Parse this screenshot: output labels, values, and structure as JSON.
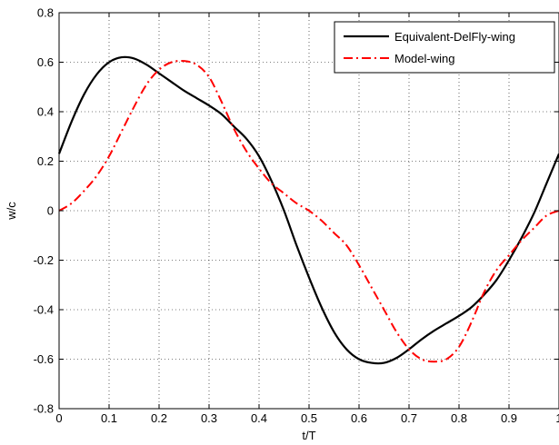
{
  "chart_data": {
    "type": "line",
    "title": "",
    "xlabel": "t/T",
    "ylabel": "w/c",
    "xlim": [
      0,
      1
    ],
    "ylim": [
      -0.8,
      0.8
    ],
    "xticks": [
      0,
      0.1,
      0.2,
      0.3,
      0.4,
      0.5,
      0.6,
      0.7,
      0.8,
      0.9,
      1
    ],
    "yticks": [
      -0.8,
      -0.6,
      -0.4,
      -0.2,
      0,
      0.2,
      0.4,
      0.6,
      0.8
    ],
    "xtick_labels": [
      "0",
      "0.1",
      "0.2",
      "0.3",
      "0.4",
      "0.5",
      "0.6",
      "0.7",
      "0.8",
      "0.9",
      "1"
    ],
    "ytick_labels": [
      "-0.8",
      "-0.6",
      "-0.4",
      "-0.2",
      "0",
      "0.2",
      "0.4",
      "0.6",
      "0.8"
    ],
    "grid": true,
    "legend_position": "top-right",
    "series": [
      {
        "name": "Equivalent-DelFly-wing",
        "color": "#000000",
        "line_style": "solid",
        "x": [
          0,
          0.025,
          0.05,
          0.075,
          0.1,
          0.125,
          0.15,
          0.175,
          0.2,
          0.225,
          0.25,
          0.275,
          0.3,
          0.325,
          0.35,
          0.375,
          0.4,
          0.425,
          0.45,
          0.475,
          0.5,
          0.525,
          0.55,
          0.575,
          0.6,
          0.625,
          0.65,
          0.675,
          0.7,
          0.725,
          0.75,
          0.775,
          0.8,
          0.825,
          0.85,
          0.875,
          0.9,
          0.925,
          0.95,
          0.975,
          1
        ],
        "y": [
          0.23,
          0.36,
          0.47,
          0.55,
          0.6,
          0.62,
          0.615,
          0.59,
          0.555,
          0.52,
          0.485,
          0.455,
          0.425,
          0.39,
          0.34,
          0.29,
          0.22,
          0.12,
          0.0,
          -0.14,
          -0.27,
          -0.39,
          -0.49,
          -0.56,
          -0.6,
          -0.615,
          -0.615,
          -0.595,
          -0.56,
          -0.52,
          -0.485,
          -0.455,
          -0.425,
          -0.39,
          -0.34,
          -0.28,
          -0.2,
          -0.11,
          -0.01,
          0.11,
          0.23
        ]
      },
      {
        "name": "Model-wing",
        "color": "#ff0000",
        "line_style": "dash-dot",
        "x": [
          0,
          0.025,
          0.05,
          0.075,
          0.1,
          0.125,
          0.15,
          0.175,
          0.2,
          0.225,
          0.25,
          0.275,
          0.3,
          0.325,
          0.35,
          0.375,
          0.4,
          0.425,
          0.45,
          0.475,
          0.5,
          0.525,
          0.55,
          0.575,
          0.6,
          0.625,
          0.65,
          0.675,
          0.7,
          0.725,
          0.75,
          0.775,
          0.8,
          0.825,
          0.85,
          0.875,
          0.9,
          0.925,
          0.95,
          0.975,
          1
        ],
        "y": [
          0.0,
          0.03,
          0.08,
          0.14,
          0.22,
          0.32,
          0.42,
          0.51,
          0.57,
          0.6,
          0.605,
          0.59,
          0.54,
          0.44,
          0.33,
          0.24,
          0.17,
          0.11,
          0.07,
          0.03,
          0.0,
          -0.04,
          -0.09,
          -0.14,
          -0.22,
          -0.31,
          -0.4,
          -0.49,
          -0.56,
          -0.6,
          -0.61,
          -0.6,
          -0.55,
          -0.45,
          -0.33,
          -0.24,
          -0.18,
          -0.12,
          -0.07,
          -0.02,
          0.0
        ]
      }
    ]
  }
}
